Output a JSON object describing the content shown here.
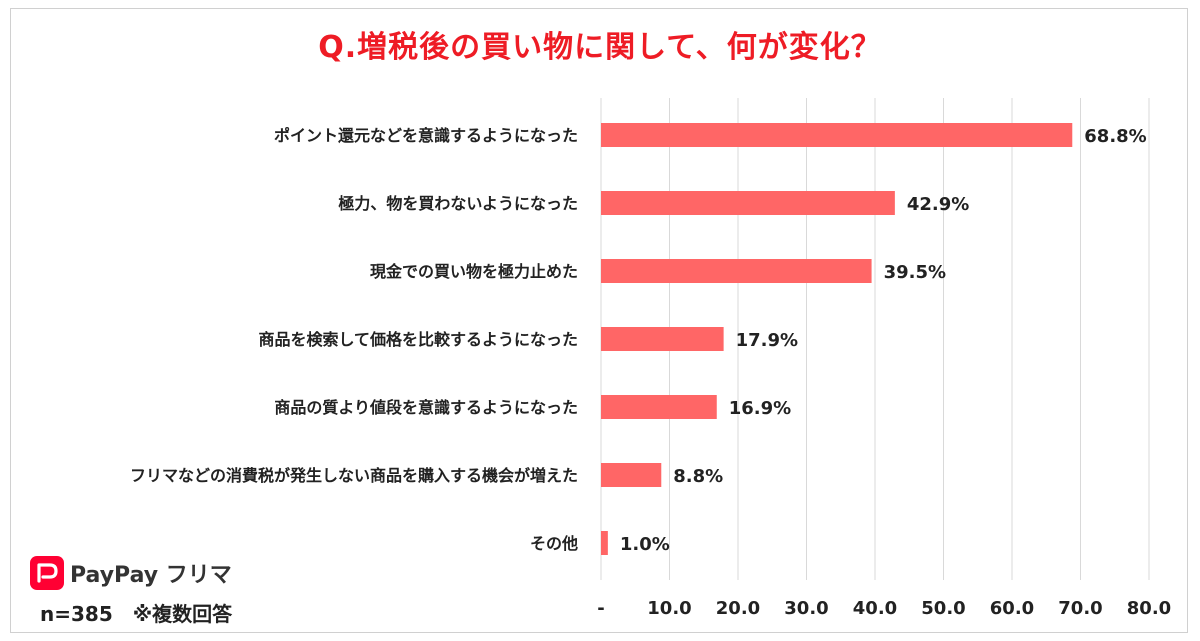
{
  "chart_data": {
    "type": "bar",
    "orientation": "horizontal",
    "title": "Q.増税後の買い物に関して、何が変化？",
    "categories": [
      "ポイント還元などを意識するようになった",
      "極力、物を買わないようになった",
      "現金での買い物を極力止めた",
      "商品を検索して価格を比較するようになった",
      "商品の質より値段を意識するようになった",
      "フリマなどの消費税が発生しない商品を購入する機会が増えた",
      "その他"
    ],
    "values": [
      68.8,
      42.9,
      39.5,
      17.9,
      16.9,
      8.8,
      1.0
    ],
    "value_labels": [
      "68.8%",
      "42.9%",
      "39.5%",
      "17.9%",
      "16.9%",
      "8.8%",
      "1.0%"
    ],
    "x_ticks": [
      0,
      10,
      20,
      30,
      40,
      50,
      60,
      70,
      80
    ],
    "x_tick_labels": [
      "-",
      "10.0",
      "20.0",
      "30.0",
      "40.0",
      "50.0",
      "60.0",
      "70.0",
      "80.0"
    ],
    "xlim": [
      0,
      80
    ],
    "grid": true,
    "xlabel": "",
    "ylabel": ""
  },
  "logo": {
    "text": "PayPay フリマ",
    "name": "paypay-furima-logo"
  },
  "footnote": "n=385　※複数回答",
  "colors": {
    "bar": "#ff6666",
    "title": "#ee1c25",
    "grid": "#d9d9d9",
    "logo": "#ff0033"
  }
}
